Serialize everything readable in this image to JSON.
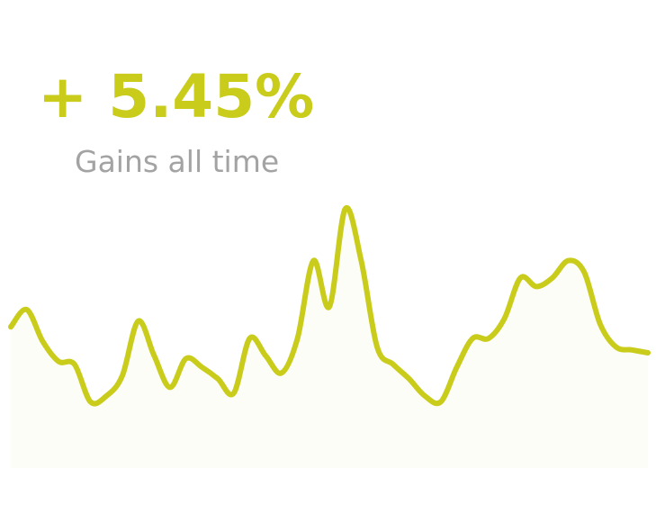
{
  "widget": {
    "value_label": "+ 5.45%",
    "caption": "Gains all time"
  },
  "colors": {
    "accent": "#c9cc1b",
    "caption": "#a3a3a3",
    "area_fill": "#fdfdf7"
  },
  "chart_data": {
    "type": "area",
    "title": "",
    "xlabel": "",
    "ylabel": "",
    "grid": false,
    "legend": "none",
    "x": [
      0,
      1,
      2,
      3,
      4,
      5,
      6,
      7,
      8,
      9,
      10,
      11,
      12,
      13,
      14,
      15,
      16,
      17,
      18,
      19,
      20,
      21,
      22,
      23,
      24,
      25,
      26,
      27,
      28,
      29,
      30,
      31,
      32,
      33,
      34,
      35,
      36,
      37,
      38,
      39,
      40
    ],
    "ylim": [
      0,
      10
    ],
    "series": [
      {
        "values": [
          4.9,
          5.5,
          4.4,
          3.7,
          3.6,
          2.3,
          2.5,
          3.2,
          5.1,
          3.9,
          2.8,
          3.8,
          3.5,
          3.1,
          2.6,
          4.5,
          3.9,
          3.3,
          4.5,
          7.2,
          5.6,
          9.0,
          7.2,
          4.2,
          3.6,
          3.1,
          2.5,
          2.3,
          3.5,
          4.5,
          4.5,
          5.2,
          6.6,
          6.3,
          6.6,
          7.2,
          6.8,
          5.0,
          4.2,
          4.1,
          4.0
        ]
      }
    ]
  }
}
